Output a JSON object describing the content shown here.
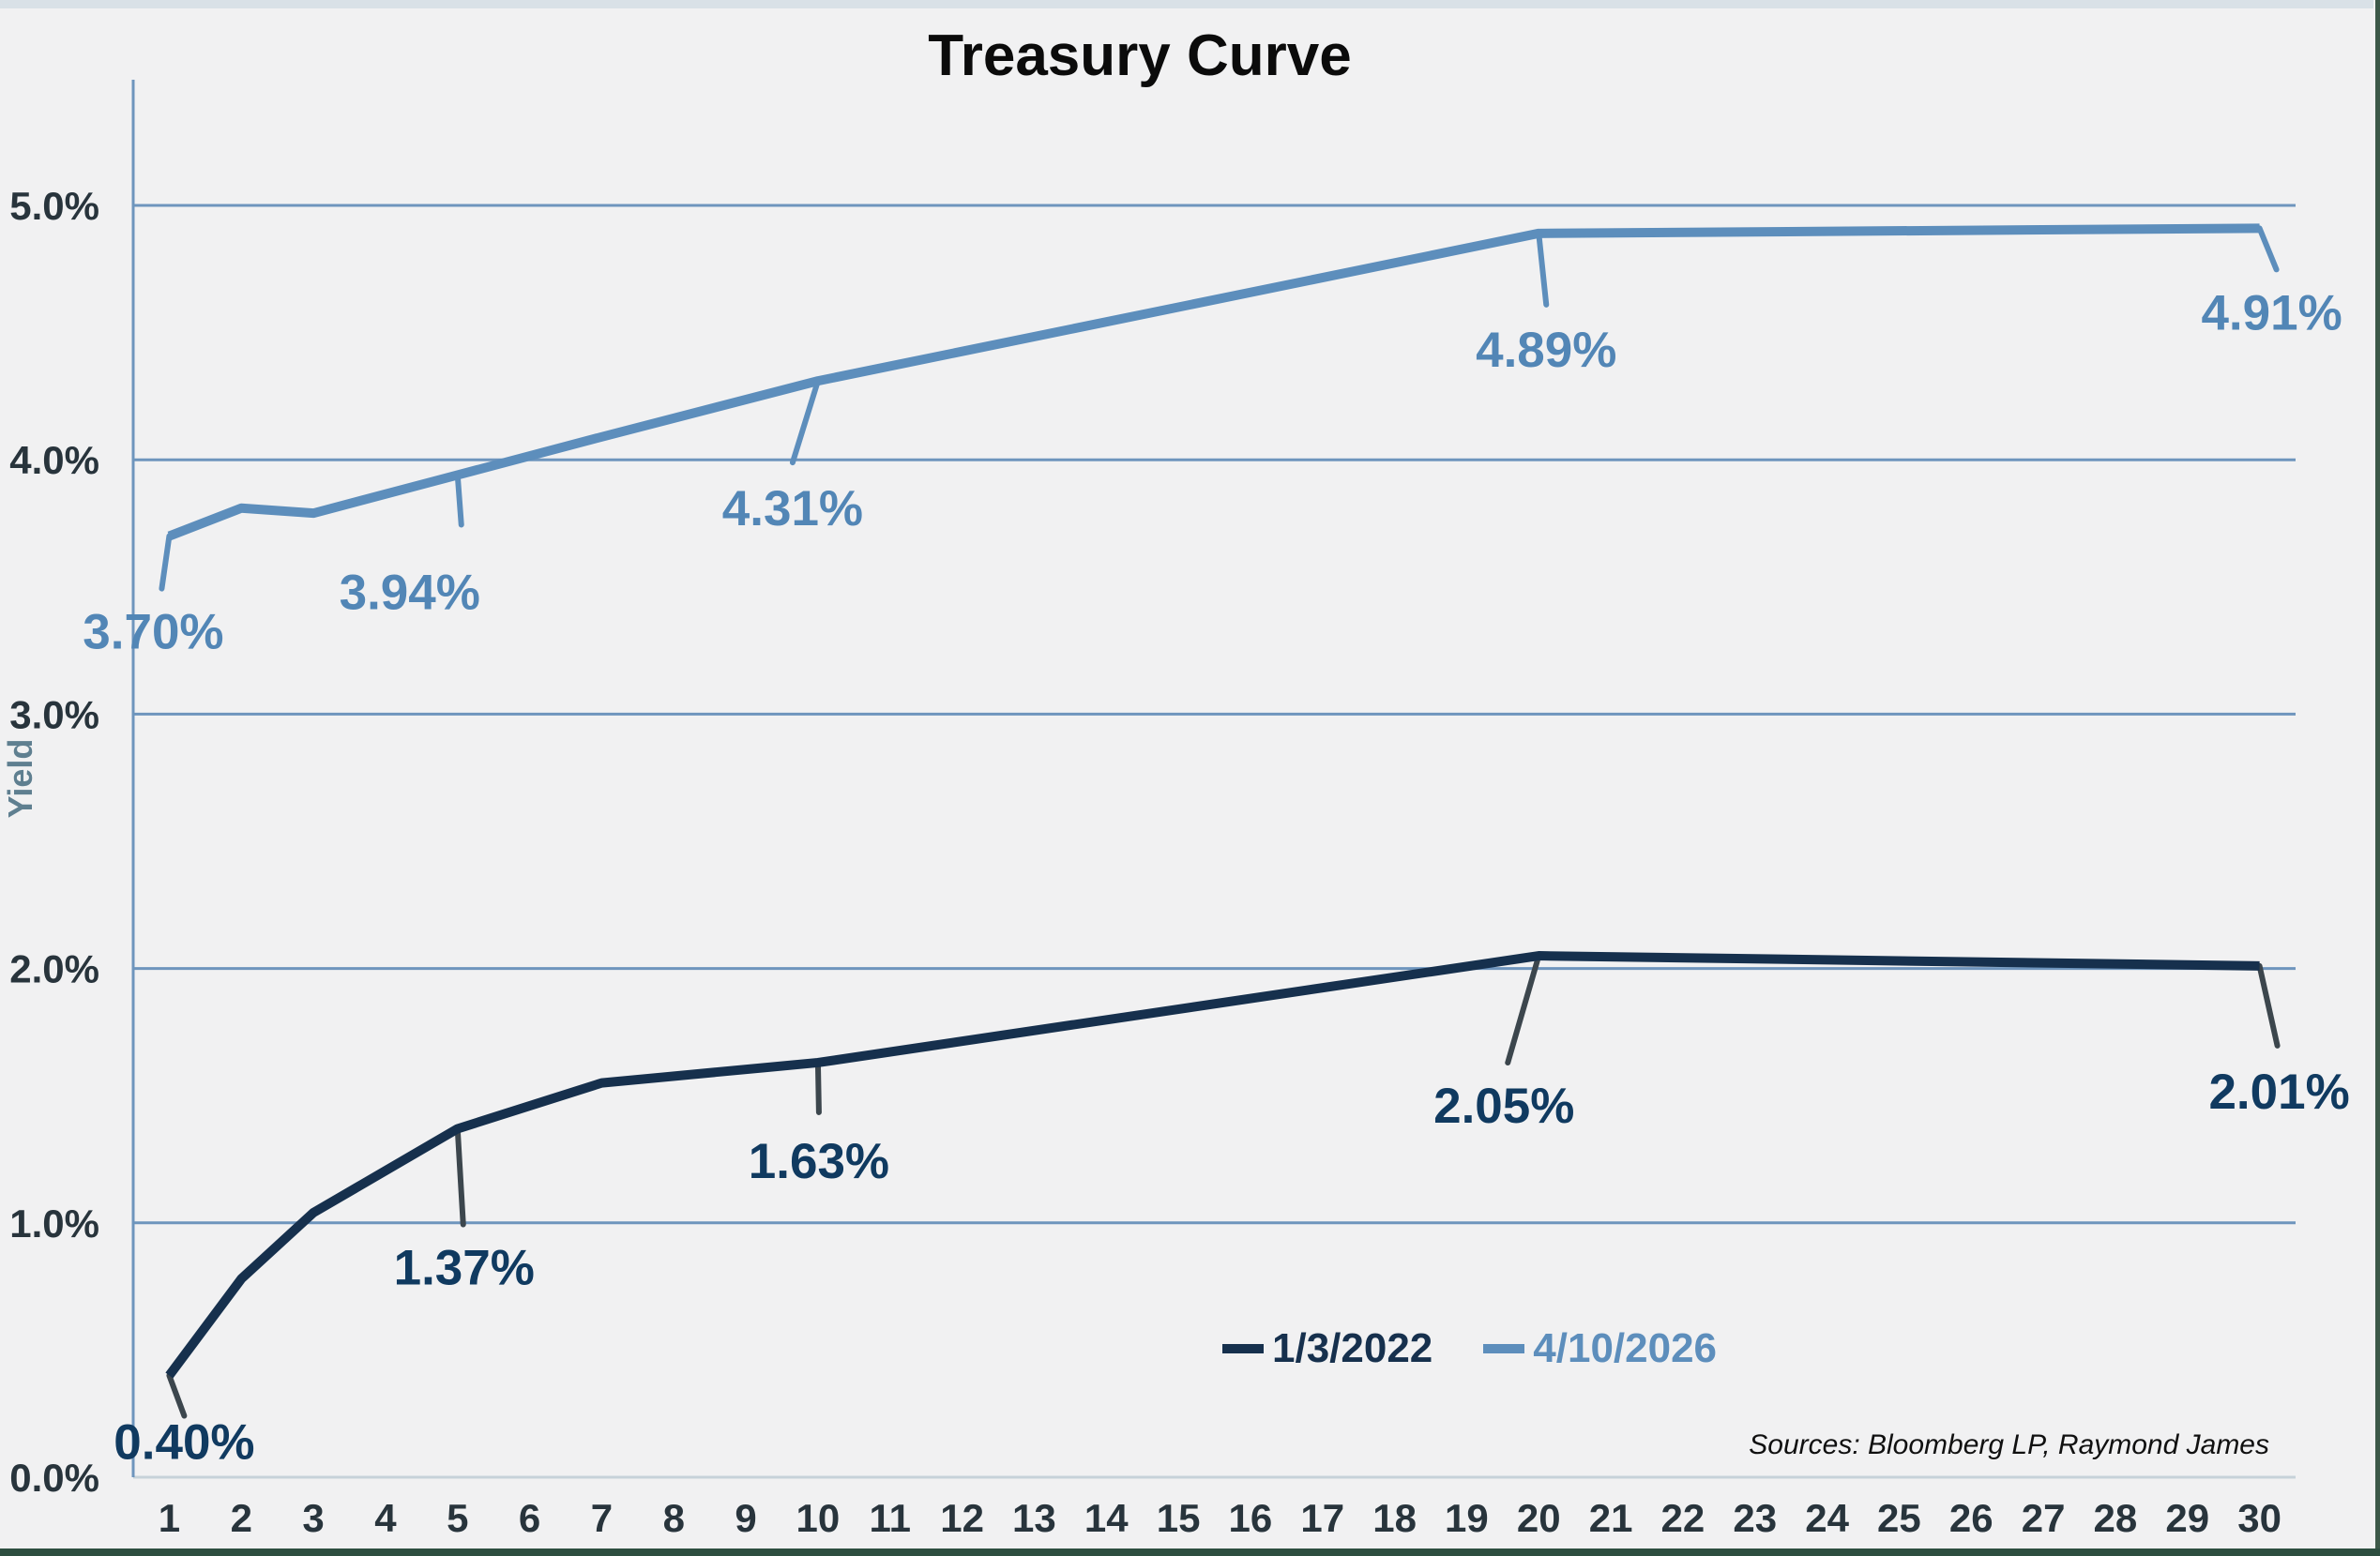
{
  "page": {
    "background": "#f1f1f2",
    "top_strip_color": "#d9e1e7",
    "right_border_color": "#3c5848",
    "bottom_border_color": "#2d4e40"
  },
  "chart_data": {
    "type": "line",
    "title": "Treasury Curve",
    "ylabel": "Yield",
    "source_note": "Sources: Bloomberg LP, Raymond James",
    "grid": "horizontal",
    "legend_position": "inside-bottom-right",
    "x_categories": [
      "1",
      "2",
      "3",
      "4",
      "5",
      "6",
      "7",
      "8",
      "9",
      "10",
      "11",
      "12",
      "13",
      "14",
      "15",
      "16",
      "17",
      "18",
      "19",
      "20",
      "21",
      "22",
      "23",
      "24",
      "25",
      "26",
      "27",
      "28",
      "29",
      "30"
    ],
    "y_axis": {
      "ticks": [
        {
          "label": "0.0%",
          "value": 0
        },
        {
          "label": "1.0%",
          "value": 1
        },
        {
          "label": "2.0%",
          "value": 2
        },
        {
          "label": "3.0%",
          "value": 3
        },
        {
          "label": "4.0%",
          "value": 4
        },
        {
          "label": "5.0%",
          "value": 5
        }
      ],
      "ylim": [
        0,
        5.5
      ]
    },
    "series": [
      {
        "name": "1/3/2022",
        "color": "#16304d",
        "label_color": "#103a60",
        "leader_color": "#3c464d",
        "points": [
          {
            "x": 1,
            "y": 0.4
          },
          {
            "x": 2,
            "y": 0.78
          },
          {
            "x": 3,
            "y": 1.04
          },
          {
            "x": 5,
            "y": 1.37
          },
          {
            "x": 7,
            "y": 1.55
          },
          {
            "x": 10,
            "y": 1.63
          },
          {
            "x": 20,
            "y": 2.05
          },
          {
            "x": 30,
            "y": 2.01
          }
        ],
        "callouts": [
          {
            "x": 1,
            "label": "0.40%",
            "lx": 16,
            "ly": 70,
            "ex": 16,
            "ey": 43
          },
          {
            "x": 5,
            "label": "1.37%",
            "lx": 7,
            "ly": 147,
            "ex": 6,
            "ey": 102
          },
          {
            "x": 10,
            "label": "1.63%",
            "lx": 1,
            "ly": 104,
            "ex": 1,
            "ey": 53
          },
          {
            "x": 20,
            "label": "2.05%",
            "lx": -37,
            "ly": 159,
            "ex": -33,
            "ey": 114
          },
          {
            "x": 30,
            "label": "2.01%",
            "lx": 21,
            "ly": 133,
            "ex": 19,
            "ey": 85
          }
        ]
      },
      {
        "name": "4/10/2026",
        "color": "#5d8ebc",
        "label_color": "#5286b6",
        "leader_color": "#5d8ebc",
        "points": [
          {
            "x": 1,
            "y": 3.7
          },
          {
            "x": 2,
            "y": 3.81
          },
          {
            "x": 3,
            "y": 3.79
          },
          {
            "x": 5,
            "y": 3.94
          },
          {
            "x": 7,
            "y": 4.09
          },
          {
            "x": 10,
            "y": 4.31
          },
          {
            "x": 20,
            "y": 4.89
          },
          {
            "x": 30,
            "y": 4.91
          }
        ],
        "callouts": [
          {
            "x": 1,
            "label": "3.70%",
            "lx": -17,
            "ly": 101,
            "ex": -8,
            "ey": 56
          },
          {
            "x": 5,
            "label": "3.94%",
            "lx": -51,
            "ly": 124,
            "ex": 4,
            "ey": 53
          },
          {
            "x": 10,
            "label": "4.31%",
            "lx": -27,
            "ly": 135,
            "ex": -27,
            "ey": 87
          },
          {
            "x": 20,
            "label": "4.89%",
            "lx": 8,
            "ly": 123,
            "ex": 8,
            "ey": 76
          },
          {
            "x": 30,
            "label": "4.91%",
            "lx": 13,
            "ly": 89,
            "ex": 18,
            "ey": 44
          }
        ]
      }
    ]
  }
}
